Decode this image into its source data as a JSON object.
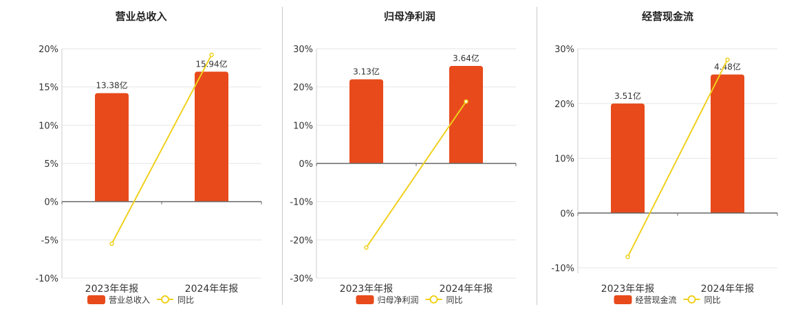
{
  "colors": {
    "bar": "#e84a1b",
    "line": "#f0d01c",
    "grid": "#e6e6e6",
    "axis": "#666666"
  },
  "chart_data": [
    {
      "type": "bar",
      "title": "营业总收入",
      "categories": [
        "2023年年报",
        "2024年年报"
      ],
      "series": [
        {
          "name": "营业总收入",
          "type": "bar",
          "values": [
            14.2,
            17.0
          ],
          "labels": [
            "13.38亿",
            "15.94亿"
          ]
        },
        {
          "name": "同比",
          "type": "line",
          "values": [
            -5.5,
            19.2
          ]
        }
      ],
      "ylim": [
        -10,
        20
      ],
      "yticks": [
        -10,
        -5,
        0,
        5,
        10,
        15,
        20
      ],
      "tick_suffix": "%",
      "grid": true,
      "legend": "bottom"
    },
    {
      "type": "bar",
      "title": "归母净利润",
      "categories": [
        "2023年年报",
        "2024年年报"
      ],
      "series": [
        {
          "name": "归母净利润",
          "type": "bar",
          "values": [
            22.0,
            25.5
          ],
          "labels": [
            "3.13亿",
            "3.64亿"
          ]
        },
        {
          "name": "同比",
          "type": "line",
          "values": [
            -22.0,
            16.2
          ]
        }
      ],
      "ylim": [
        -30,
        30
      ],
      "yticks": [
        -30,
        -20,
        -10,
        0,
        10,
        20,
        30
      ],
      "tick_suffix": "%",
      "grid": true,
      "legend": "bottom"
    },
    {
      "type": "bar",
      "title": "经营现金流",
      "categories": [
        "2023年年报",
        "2024年年报"
      ],
      "series": [
        {
          "name": "经营现金流",
          "type": "bar",
          "values": [
            20.0,
            25.3
          ],
          "labels": [
            "3.51亿",
            "4.48亿"
          ]
        },
        {
          "name": "同比",
          "type": "line",
          "values": [
            -8.0,
            28.0
          ]
        }
      ],
      "ylim": [
        -11,
        30
      ],
      "yticks": [
        -10,
        0,
        10,
        20,
        30
      ],
      "tick_suffix": "%",
      "grid": true,
      "legend": "bottom"
    }
  ]
}
